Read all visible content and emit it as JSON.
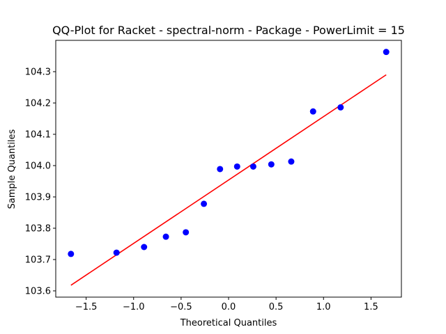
{
  "chart_data": {
    "type": "scatter",
    "title": "QQ-Plot for Racket - spectral-norm - Package - PowerLimit = 15",
    "xlabel": "Theoretical Quantiles",
    "ylabel": "Sample Quantiles",
    "xlim": [
      -1.82,
      1.82
    ],
    "ylim": [
      103.58,
      104.4
    ],
    "xticks": [
      -1.5,
      -1.0,
      -0.5,
      0.0,
      0.5,
      1.0,
      1.5
    ],
    "xtick_labels": [
      "−1.5",
      "−1.0",
      "−0.5",
      "0.0",
      "0.5",
      "1.0",
      "1.5"
    ],
    "yticks": [
      103.6,
      103.7,
      103.8,
      103.9,
      104.0,
      104.1,
      104.2,
      104.3
    ],
    "ytick_labels": [
      "103.6",
      "103.7",
      "103.8",
      "103.9",
      "104.0",
      "104.1",
      "104.2",
      "104.3"
    ],
    "grid": false,
    "points": {
      "color": "#0000ff",
      "x": [
        -1.66,
        -1.18,
        -0.89,
        -0.66,
        -0.45,
        -0.26,
        -0.09,
        0.09,
        0.26,
        0.45,
        0.66,
        0.89,
        1.18,
        1.66
      ],
      "y": [
        103.718,
        103.722,
        103.74,
        103.773,
        103.787,
        103.878,
        103.989,
        103.997,
        103.997,
        104.004,
        104.013,
        104.173,
        104.186,
        104.363
      ]
    },
    "fit_line": {
      "color": "#ff0000",
      "x": [
        -1.66,
        1.66
      ],
      "y": [
        103.618,
        104.29
      ]
    }
  }
}
